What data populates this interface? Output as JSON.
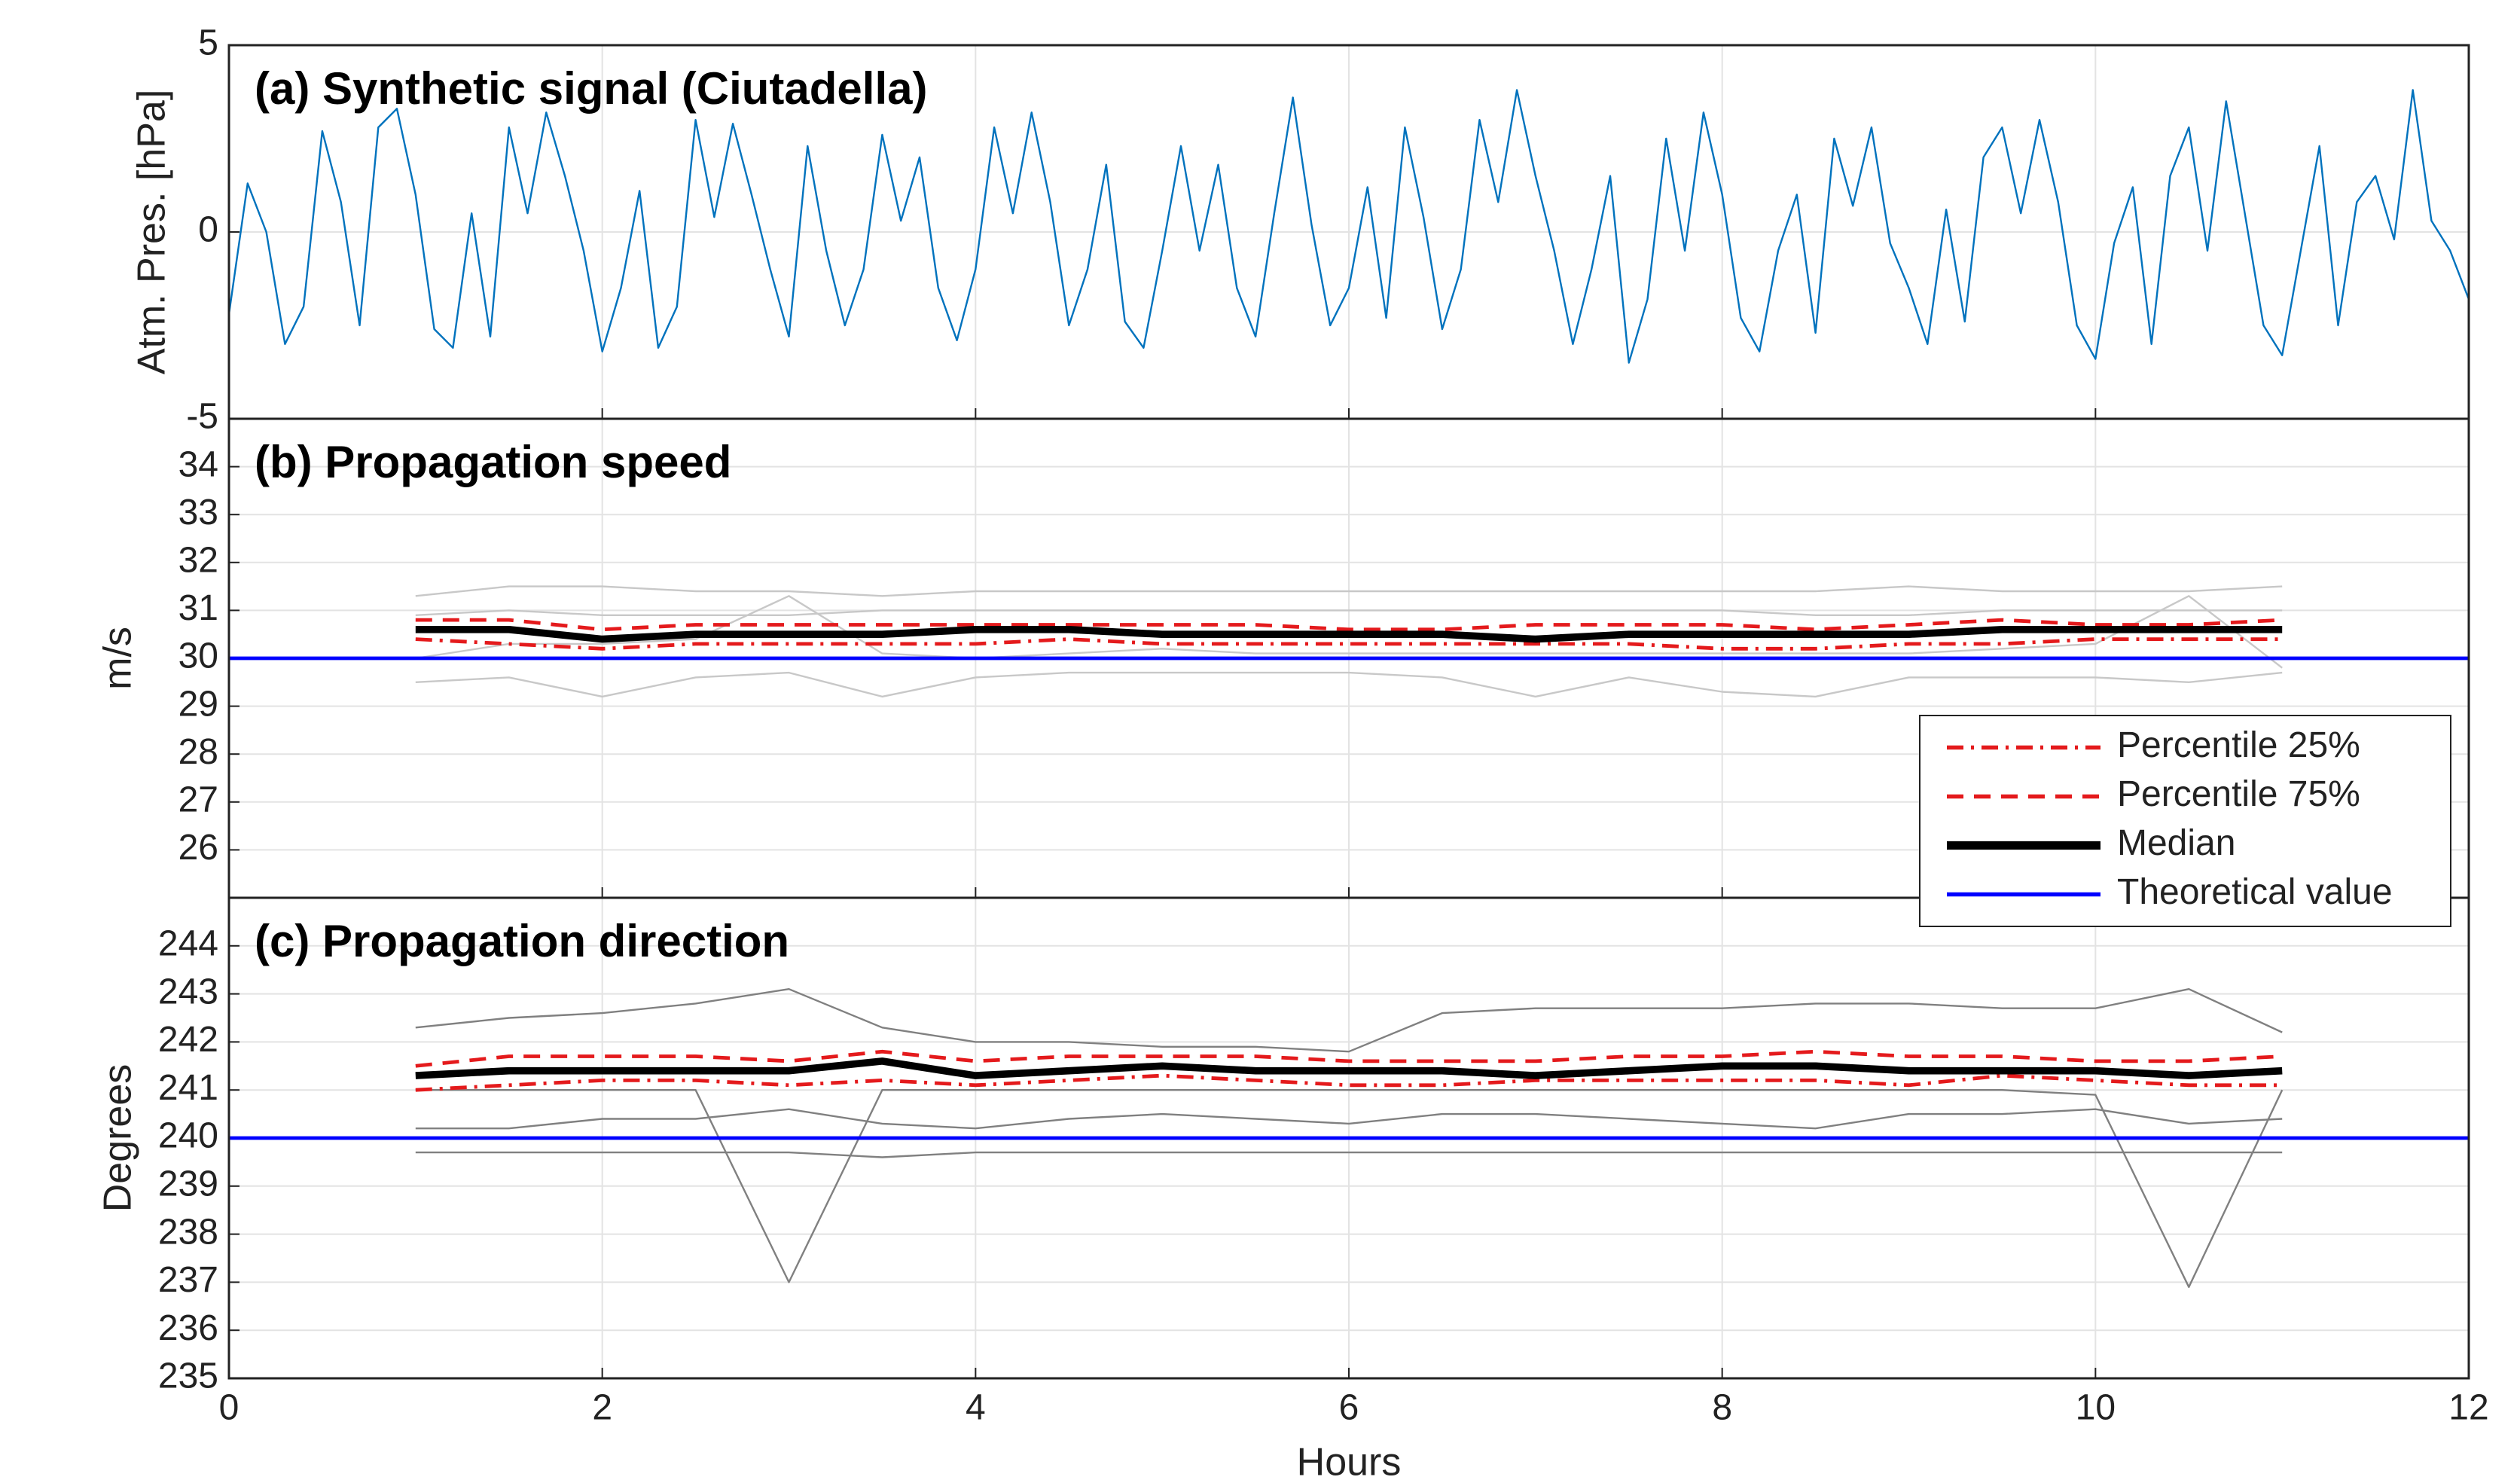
{
  "chart_data": [
    {
      "type": "line",
      "title": "(a) Synthetic signal (Ciutadella)",
      "ylabel": "Atm. Pres. [hPa]",
      "xlim": [
        0,
        12
      ],
      "xticks": [
        0,
        2,
        4,
        6,
        8,
        10,
        12
      ],
      "ylim": [
        -5,
        5
      ],
      "yticks": [
        -5,
        0,
        5
      ],
      "grid": true,
      "x": [
        0,
        0.1,
        0.2,
        0.3,
        0.4,
        0.5,
        0.6,
        0.7,
        0.8,
        0.9,
        1,
        1.1,
        1.2,
        1.3,
        1.4,
        1.5,
        1.6,
        1.7,
        1.8,
        1.9,
        2,
        2.1,
        2.2,
        2.3,
        2.4,
        2.5,
        2.6,
        2.7,
        2.8,
        2.9,
        3,
        3.1,
        3.2,
        3.3,
        3.4,
        3.5,
        3.6,
        3.7,
        3.8,
        3.9,
        4,
        4.1,
        4.2,
        4.3,
        4.4,
        4.5,
        4.6,
        4.7,
        4.8,
        4.9,
        5,
        5.1,
        5.2,
        5.3,
        5.4,
        5.5,
        5.6,
        5.7,
        5.8,
        5.9,
        6,
        6.1,
        6.2,
        6.3,
        6.4,
        6.5,
        6.6,
        6.7,
        6.8,
        6.9,
        7,
        7.1,
        7.2,
        7.3,
        7.4,
        7.5,
        7.6,
        7.7,
        7.8,
        7.9,
        8,
        8.1,
        8.2,
        8.3,
        8.4,
        8.5,
        8.6,
        8.7,
        8.8,
        8.9,
        9,
        9.1,
        9.2,
        9.3,
        9.4,
        9.5,
        9.6,
        9.7,
        9.8,
        9.9,
        10,
        10.1,
        10.2,
        10.3,
        10.4,
        10.5,
        10.6,
        10.7,
        10.8,
        10.9,
        11,
        11.1,
        11.2,
        11.3,
        11.4,
        11.5,
        11.6,
        11.7,
        11.8,
        11.9,
        12
      ],
      "series": [
        {
          "color": "#0072bd",
          "linestyle": "solid",
          "linewidth": 1,
          "values": [
            -2.2,
            1.3,
            0.0,
            -3.0,
            -2.0,
            2.7,
            0.8,
            -2.5,
            2.8,
            3.3,
            1.0,
            -2.6,
            -3.1,
            0.5,
            -2.8,
            2.8,
            0.5,
            3.2,
            1.5,
            -0.5,
            -3.2,
            -1.5,
            1.1,
            -3.1,
            -2.0,
            3.0,
            0.4,
            2.9,
            1.0,
            -1.0,
            -2.8,
            2.3,
            -0.5,
            -2.5,
            -1.0,
            2.6,
            0.3,
            2.0,
            -1.5,
            -2.9,
            -1.0,
            2.8,
            0.5,
            3.2,
            0.8,
            -2.5,
            -1.0,
            1.8,
            -2.4,
            -3.1,
            -0.5,
            2.3,
            -0.5,
            1.8,
            -1.5,
            -2.8,
            0.5,
            3.6,
            0.2,
            -2.5,
            -1.5,
            1.2,
            -2.3,
            2.8,
            0.4,
            -2.6,
            -1.0,
            3.0,
            0.8,
            3.8,
            1.5,
            -0.5,
            -3.0,
            -1.0,
            1.5,
            -3.5,
            -1.8,
            2.5,
            -0.5,
            3.2,
            1.0,
            -2.3,
            -3.2,
            -0.5,
            1.0,
            -2.7,
            2.5,
            0.7,
            2.8,
            -0.3,
            -1.5,
            -3.0,
            0.6,
            -2.4,
            2.0,
            2.8,
            0.5,
            3.0,
            0.8,
            -2.5,
            -3.4,
            -0.3,
            1.2,
            -3.0,
            1.5,
            2.8,
            -0.5,
            3.5,
            0.5,
            -2.5,
            -3.3,
            -0.5,
            2.3,
            -2.5,
            0.8,
            1.5,
            -0.2,
            3.8,
            0.3,
            -0.5,
            -1.8
          ]
        }
      ]
    },
    {
      "type": "line",
      "title": "(b) Propagation speed",
      "ylabel": "m/s",
      "xlim": [
        0,
        12
      ],
      "xticks": [
        0,
        2,
        4,
        6,
        8,
        10,
        12
      ],
      "ylim": [
        25,
        35
      ],
      "yticks": [
        26,
        27,
        28,
        29,
        30,
        31,
        32,
        33,
        34
      ],
      "grid": true,
      "legend": "lower right",
      "x": [
        1,
        1.5,
        2,
        2.5,
        3,
        3.5,
        4,
        4.5,
        5,
        5.5,
        6,
        6.5,
        7,
        7.5,
        8,
        8.5,
        9,
        9.5,
        10,
        10.5,
        11
      ],
      "series": [
        {
          "color": "#c8c8c8",
          "linestyle": "solid",
          "linewidth": 1,
          "values": [
            31.3,
            31.5,
            31.5,
            31.4,
            31.4,
            31.3,
            31.4,
            31.4,
            31.4,
            31.4,
            31.4,
            31.4,
            31.4,
            31.4,
            31.4,
            31.4,
            31.5,
            31.4,
            31.4,
            31.4,
            31.5
          ]
        },
        {
          "color": "#c8c8c8",
          "linestyle": "solid",
          "linewidth": 1,
          "values": [
            29.5,
            29.6,
            29.2,
            29.6,
            29.7,
            29.2,
            29.6,
            29.7,
            29.7,
            29.7,
            29.7,
            29.6,
            29.2,
            29.6,
            29.3,
            29.2,
            29.6,
            29.6,
            29.6,
            29.5,
            29.7
          ]
        },
        {
          "color": "#c8c8c8",
          "linestyle": "solid",
          "linewidth": 1,
          "values": [
            30.0,
            30.3,
            30.3,
            30.4,
            31.3,
            30.1,
            30.0,
            30.1,
            30.2,
            30.1,
            30.1,
            30.1,
            30.1,
            30.1,
            30.1,
            30.1,
            30.1,
            30.2,
            30.3,
            31.3,
            29.8
          ]
        },
        {
          "color": "#c8c8c8",
          "linestyle": "solid",
          "linewidth": 1,
          "values": [
            30.9,
            31.0,
            30.9,
            30.9,
            30.9,
            31.0,
            31.0,
            31.0,
            31.0,
            31.0,
            31.0,
            31.0,
            31.0,
            31.0,
            31.0,
            30.9,
            30.9,
            31.0,
            31.0,
            31.0,
            31.0
          ]
        },
        {
          "name": "Percentile 25%",
          "color": "#e41a1c",
          "linestyle": "dashdot",
          "linewidth": 2,
          "values": [
            30.4,
            30.3,
            30.2,
            30.3,
            30.3,
            30.3,
            30.3,
            30.4,
            30.3,
            30.3,
            30.3,
            30.3,
            30.3,
            30.3,
            30.2,
            30.2,
            30.3,
            30.3,
            30.4,
            30.4,
            30.4
          ]
        },
        {
          "name": "Percentile 75%",
          "color": "#e41a1c",
          "linestyle": "dashed",
          "linewidth": 2,
          "values": [
            30.8,
            30.8,
            30.6,
            30.7,
            30.7,
            30.7,
            30.7,
            30.7,
            30.7,
            30.7,
            30.6,
            30.6,
            30.7,
            30.7,
            30.7,
            30.6,
            30.7,
            30.8,
            30.7,
            30.7,
            30.8
          ]
        },
        {
          "name": "Median",
          "color": "#000000",
          "linestyle": "solid",
          "linewidth": 4,
          "values": [
            30.6,
            30.6,
            30.4,
            30.5,
            30.5,
            30.5,
            30.6,
            30.6,
            30.5,
            30.5,
            30.5,
            30.5,
            30.4,
            30.5,
            30.5,
            30.5,
            30.5,
            30.6,
            30.6,
            30.6,
            30.6
          ]
        },
        {
          "name": "Theoretical value",
          "color": "#0000ff",
          "linestyle": "solid",
          "linewidth": 2,
          "x": [
            0,
            12
          ],
          "values": [
            30,
            30
          ]
        }
      ]
    },
    {
      "type": "line",
      "title": "(c) Propagation direction",
      "ylabel": "Degrees",
      "xlabel": "Hours",
      "xlim": [
        0,
        12
      ],
      "xticks": [
        0,
        2,
        4,
        6,
        8,
        10,
        12
      ],
      "ylim": [
        235,
        245
      ],
      "yticks": [
        235,
        236,
        237,
        238,
        239,
        240,
        241,
        242,
        243,
        244
      ],
      "grid": true,
      "x": [
        1,
        1.5,
        2,
        2.5,
        3,
        3.5,
        4,
        4.5,
        5,
        5.5,
        6,
        6.5,
        7,
        7.5,
        8,
        8.5,
        9,
        9.5,
        10,
        10.5,
        11
      ],
      "series": [
        {
          "color": "#808080",
          "linestyle": "solid",
          "linewidth": 1,
          "values": [
            242.3,
            242.5,
            242.6,
            242.8,
            243.1,
            242.3,
            242.0,
            242.0,
            241.9,
            241.9,
            241.8,
            242.6,
            242.7,
            242.7,
            242.7,
            242.8,
            242.8,
            242.7,
            242.7,
            243.1,
            242.2
          ]
        },
        {
          "color": "#808080",
          "linestyle": "solid",
          "linewidth": 1,
          "values": [
            241.0,
            241.0,
            241.0,
            241.0,
            237.0,
            241.0,
            241.0,
            241.0,
            241.0,
            241.0,
            241.0,
            241.0,
            241.0,
            241.0,
            241.0,
            241.0,
            241.0,
            241.0,
            240.9,
            236.9,
            241.0
          ]
        },
        {
          "color": "#808080",
          "linestyle": "solid",
          "linewidth": 1,
          "values": [
            239.7,
            239.7,
            239.7,
            239.7,
            239.7,
            239.6,
            239.7,
            239.7,
            239.7,
            239.7,
            239.7,
            239.7,
            239.7,
            239.7,
            239.7,
            239.7,
            239.7,
            239.7,
            239.7,
            239.7,
            239.7
          ]
        },
        {
          "color": "#808080",
          "linestyle": "solid",
          "linewidth": 1,
          "values": [
            240.2,
            240.2,
            240.4,
            240.4,
            240.6,
            240.3,
            240.2,
            240.4,
            240.5,
            240.4,
            240.3,
            240.5,
            240.5,
            240.4,
            240.3,
            240.2,
            240.5,
            240.5,
            240.6,
            240.3,
            240.4
          ]
        },
        {
          "name": "Percentile 25%",
          "color": "#e41a1c",
          "linestyle": "dashdot",
          "linewidth": 2,
          "values": [
            241.0,
            241.1,
            241.2,
            241.2,
            241.1,
            241.2,
            241.1,
            241.2,
            241.3,
            241.2,
            241.1,
            241.1,
            241.2,
            241.2,
            241.2,
            241.2,
            241.1,
            241.3,
            241.2,
            241.1,
            241.1
          ]
        },
        {
          "name": "Percentile 75%",
          "color": "#e41a1c",
          "linestyle": "dashed",
          "linewidth": 2,
          "values": [
            241.5,
            241.7,
            241.7,
            241.7,
            241.6,
            241.8,
            241.6,
            241.7,
            241.7,
            241.7,
            241.6,
            241.6,
            241.6,
            241.7,
            241.7,
            241.8,
            241.7,
            241.7,
            241.6,
            241.6,
            241.7
          ]
        },
        {
          "name": "Median",
          "color": "#000000",
          "linestyle": "solid",
          "linewidth": 4,
          "values": [
            241.3,
            241.4,
            241.4,
            241.4,
            241.4,
            241.6,
            241.3,
            241.4,
            241.5,
            241.4,
            241.4,
            241.4,
            241.3,
            241.4,
            241.5,
            241.5,
            241.4,
            241.4,
            241.4,
            241.3,
            241.4
          ]
        },
        {
          "name": "Theoretical value",
          "color": "#0000ff",
          "linestyle": "solid",
          "linewidth": 2,
          "x": [
            0,
            12
          ],
          "values": [
            240,
            240
          ]
        }
      ]
    }
  ]
}
